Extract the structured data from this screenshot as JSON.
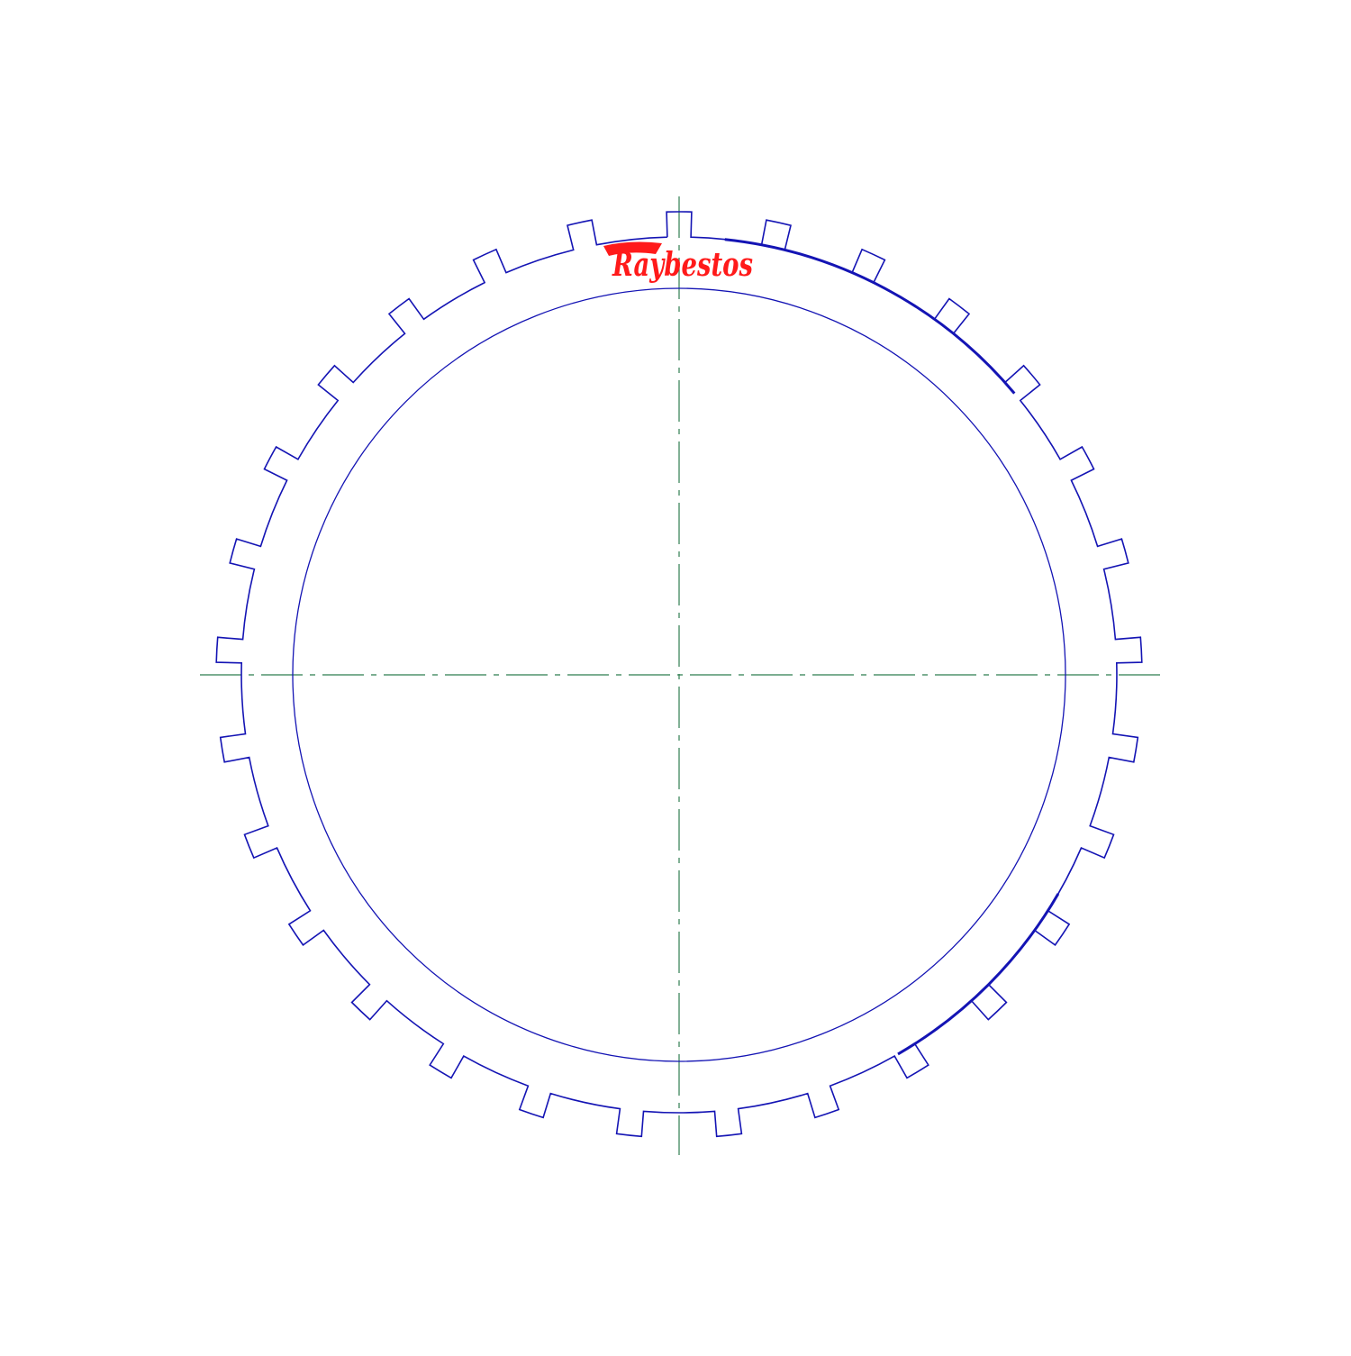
{
  "drawing": {
    "description_type": "technical-drawing",
    "line_color": "#1414b4",
    "centerline_color": "#2e7d4f",
    "logo_color": "#ff1a1a",
    "logo_text": "Raybestos",
    "tooth_count": 29
  }
}
